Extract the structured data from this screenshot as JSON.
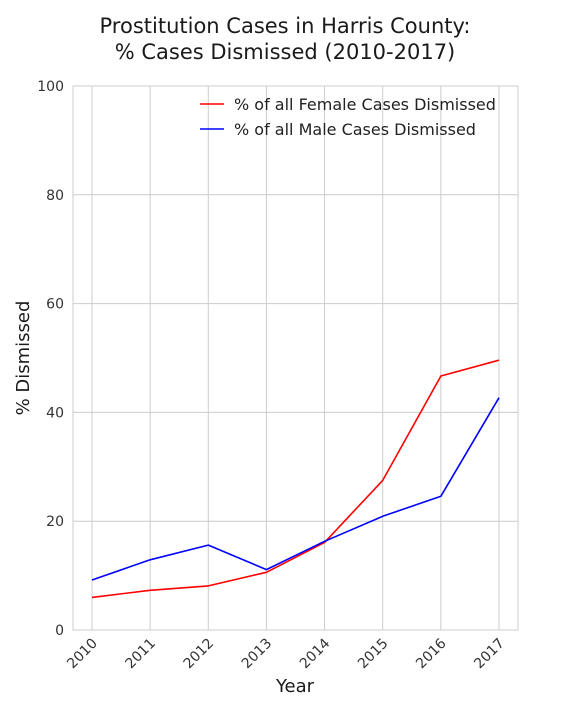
{
  "chart_data": {
    "type": "line",
    "title": [
      "Prostitution Cases in Harris County:",
      "% Cases Dismissed (2010-2017)"
    ],
    "xlabel": "Year",
    "ylabel": "% Dismissed",
    "x": [
      2010,
      2011,
      2012,
      2013,
      2014,
      2015,
      2016,
      2017
    ],
    "x_tick_labels": [
      "2010",
      "2011",
      "2012",
      "2013",
      "2014",
      "2015",
      "2016",
      "2017"
    ],
    "ylim": [
      0,
      100
    ],
    "y_ticks": [
      0,
      20,
      40,
      60,
      80,
      100
    ],
    "y_tick_labels": [
      "0",
      "20",
      "40",
      "60",
      "80",
      "100"
    ],
    "grid": true,
    "legend_position": "top-right",
    "series": [
      {
        "name": "% of all Female Cases Dismissed",
        "color": "#ff0000",
        "values": [
          6.0,
          7.3,
          8.1,
          10.6,
          16.1,
          27.5,
          46.7,
          49.6
        ]
      },
      {
        "name": "% of all Male Cases Dismissed",
        "color": "#0000ff",
        "values": [
          9.2,
          12.9,
          15.6,
          11.1,
          16.3,
          20.9,
          24.6,
          42.7
        ]
      }
    ]
  }
}
